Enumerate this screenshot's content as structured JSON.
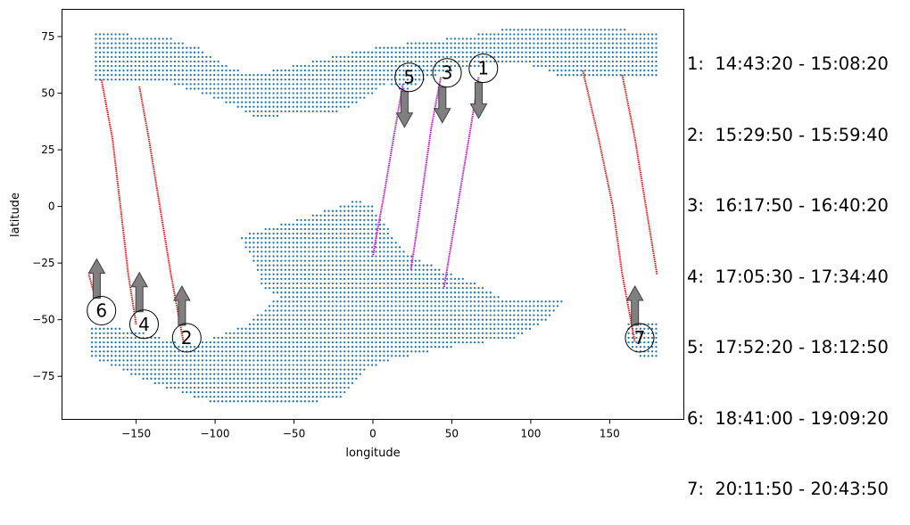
{
  "chart_data": {
    "type": "scatter",
    "title": "",
    "xlabel": "longitude",
    "ylabel": "latitude",
    "xlim": [
      -197,
      197
    ],
    "ylim": [
      -94,
      87
    ],
    "xticks": [
      -150,
      -100,
      -50,
      0,
      50,
      100,
      150
    ],
    "yticks": [
      -75,
      -50,
      -25,
      0,
      25,
      50,
      75
    ],
    "grid": false,
    "colors": {
      "land_points": "#1f77b4",
      "red_track": "#e41a1c",
      "magenta_track": "#c01ac0",
      "arrow_fill": "#808080",
      "arrow_edge": "#404040"
    },
    "land_regions": [
      {
        "name": "northern band",
        "polygon": [
          [
            -177,
            77
          ],
          [
            -130,
            75
          ],
          [
            -110,
            70
          ],
          [
            -95,
            63
          ],
          [
            -85,
            60
          ],
          [
            -65,
            60
          ],
          [
            -45,
            63
          ],
          [
            -20,
            67
          ],
          [
            0,
            70
          ],
          [
            30,
            73
          ],
          [
            60,
            75
          ],
          [
            80,
            78
          ],
          [
            120,
            80
          ],
          [
            180,
            77
          ],
          [
            180,
            57
          ],
          [
            150,
            58
          ],
          [
            120,
            57
          ],
          [
            110,
            60
          ],
          [
            100,
            62
          ],
          [
            80,
            63
          ],
          [
            50,
            60
          ],
          [
            30,
            55
          ],
          [
            20,
            50
          ],
          [
            10,
            55
          ],
          [
            -10,
            45
          ],
          [
            -30,
            40
          ],
          [
            -50,
            42
          ],
          [
            -70,
            38
          ],
          [
            -90,
            45
          ],
          [
            -110,
            50
          ],
          [
            -130,
            55
          ],
          [
            -150,
            55
          ],
          [
            -177,
            55
          ]
        ]
      },
      {
        "name": "southern mass",
        "polygon": [
          [
            -10,
            3
          ],
          [
            -35,
            -3
          ],
          [
            -55,
            -7
          ],
          [
            -70,
            -10
          ],
          [
            -85,
            -13
          ],
          [
            -75,
            -25
          ],
          [
            -70,
            -35
          ],
          [
            -60,
            -40
          ],
          [
            -80,
            -52
          ],
          [
            -115,
            -62
          ],
          [
            -150,
            -55
          ],
          [
            -178,
            -52
          ],
          [
            -178,
            -67
          ],
          [
            -160,
            -72
          ],
          [
            -140,
            -78
          ],
          [
            -100,
            -87
          ],
          [
            -60,
            -88
          ],
          [
            -20,
            -85
          ],
          [
            -5,
            -72
          ],
          [
            10,
            -68
          ],
          [
            30,
            -65
          ],
          [
            50,
            -62
          ],
          [
            70,
            -60
          ],
          [
            90,
            -58
          ],
          [
            100,
            -55
          ],
          [
            110,
            -50
          ],
          [
            120,
            -42
          ],
          [
            100,
            -40
          ],
          [
            80,
            -40
          ],
          [
            70,
            -35
          ],
          [
            50,
            -30
          ],
          [
            20,
            -20
          ],
          [
            10,
            -10
          ],
          [
            0,
            0
          ]
        ]
      },
      {
        "name": "southern right fringe",
        "polygon": [
          [
            160,
            -50
          ],
          [
            180,
            -50
          ],
          [
            180,
            -67
          ],
          [
            170,
            -67
          ],
          [
            160,
            -60
          ]
        ]
      }
    ],
    "tracks": [
      {
        "id": "1",
        "color": "magenta",
        "points": [
          [
            67,
            57
          ],
          [
            62,
            35
          ],
          [
            56,
            10
          ],
          [
            50,
            -15
          ],
          [
            45,
            -36
          ]
        ]
      },
      {
        "id": "2",
        "color": "red",
        "points": [
          [
            -148,
            53
          ],
          [
            -142,
            30
          ],
          [
            -135,
            0
          ],
          [
            -128,
            -30
          ],
          [
            -120,
            -60
          ]
        ]
      },
      {
        "id": "3",
        "color": "magenta",
        "points": [
          [
            43,
            57
          ],
          [
            37,
            35
          ],
          [
            32,
            10
          ],
          [
            28,
            -10
          ],
          [
            24,
            -28
          ]
        ]
      },
      {
        "id": "4",
        "color": "red",
        "points": [
          [
            -172,
            56
          ],
          [
            -165,
            30
          ],
          [
            -160,
            0
          ],
          [
            -155,
            -30
          ],
          [
            -150,
            -52
          ]
        ]
      },
      {
        "id": "5",
        "color": "magenta",
        "points": [
          [
            19,
            54
          ],
          [
            13,
            30
          ],
          [
            7,
            5
          ],
          [
            3,
            -10
          ],
          [
            0,
            -22
          ]
        ]
      },
      {
        "id": "6",
        "color": "red",
        "points": [
          [
            -180,
            -30
          ],
          [
            -178,
            -35
          ],
          [
            -176,
            -40
          ]
        ]
      },
      {
        "id": "6b",
        "color": "red",
        "points": [
          [
            133,
            60
          ],
          [
            143,
            30
          ],
          [
            152,
            0
          ],
          [
            158,
            -30
          ],
          [
            166,
            -60
          ]
        ]
      },
      {
        "id": "7",
        "color": "red",
        "points": [
          [
            158,
            58
          ],
          [
            166,
            30
          ],
          [
            173,
            0
          ],
          [
            180,
            -30
          ]
        ]
      }
    ],
    "markers": [
      {
        "label": "1",
        "x": 70,
        "y": 61,
        "arrow": "down",
        "arrow_x": 67
      },
      {
        "label": "2",
        "x": -118,
        "y": -58,
        "arrow": "up",
        "arrow_x": -121
      },
      {
        "label": "3",
        "x": 47,
        "y": 59,
        "arrow": "down",
        "arrow_x": 44
      },
      {
        "label": "4",
        "x": -145,
        "y": -52,
        "arrow": "up",
        "arrow_x": -148
      },
      {
        "label": "5",
        "x": 23,
        "y": 57,
        "arrow": "down",
        "arrow_x": 20
      },
      {
        "label": "6",
        "x": -172,
        "y": -46,
        "arrow": "up",
        "arrow_x": -175
      },
      {
        "label": "7",
        "x": 169,
        "y": -58,
        "arrow": "up",
        "arrow_x": 166
      }
    ],
    "legend": [
      "1:  14:43:20 - 15:08:20",
      "2:  15:29:50 - 15:59:40",
      "3:  16:17:50 - 16:40:20",
      "4:  17:05:30 - 17:34:40",
      "5:  17:52:20 - 18:12:50",
      "6:  18:41:00 - 19:09:20",
      "7:  20:11:50 - 20:43:50"
    ]
  }
}
